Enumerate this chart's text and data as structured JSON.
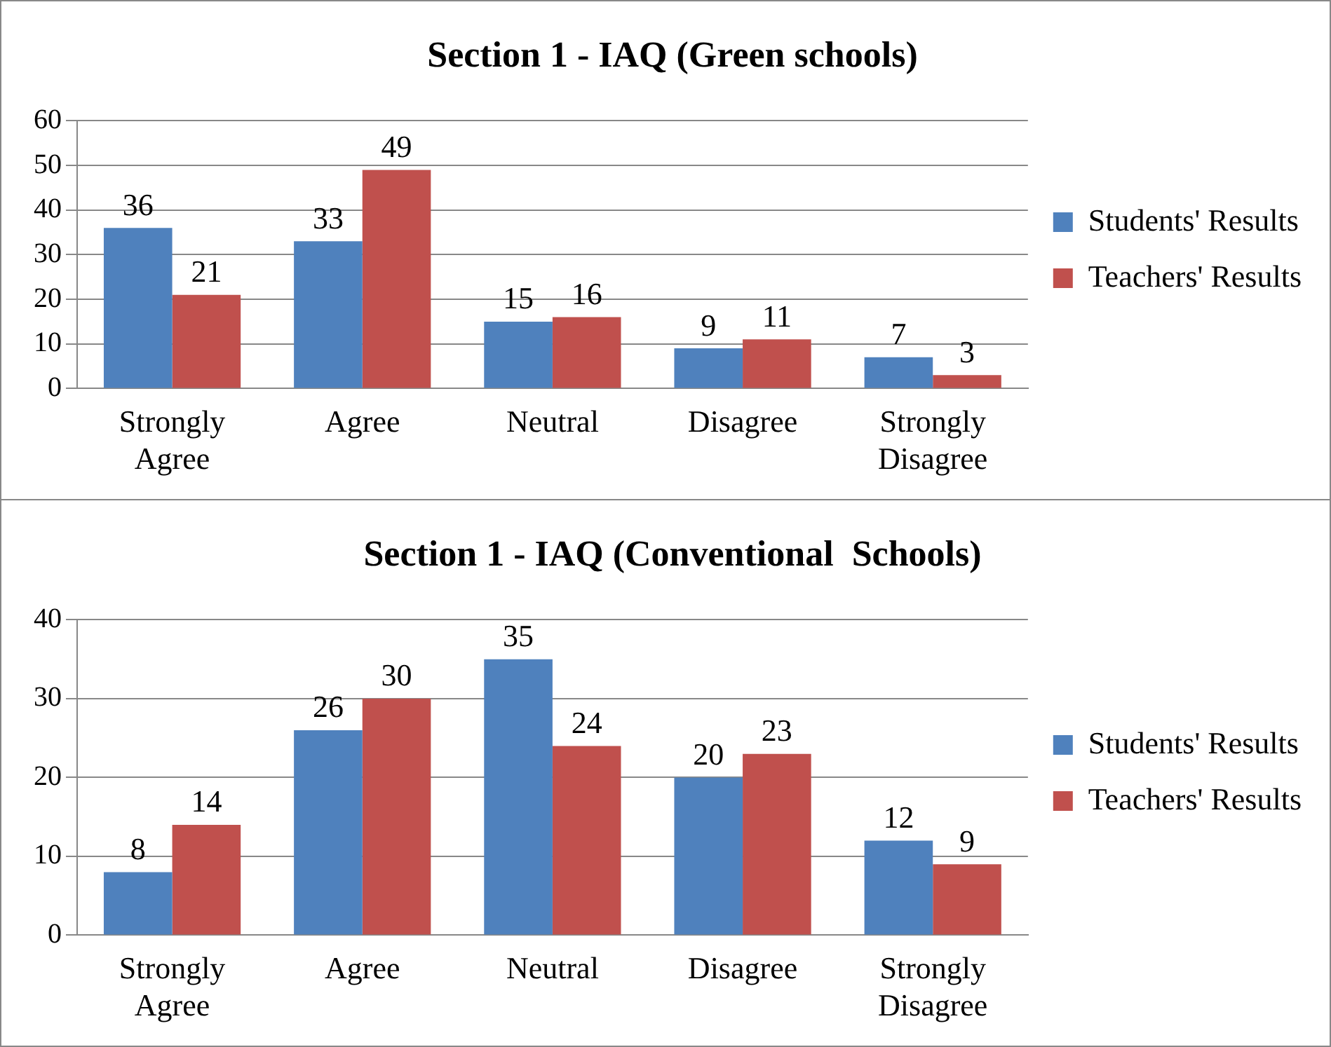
{
  "chart_data": [
    {
      "type": "bar",
      "title": "Section 1 - IAQ (Green schools)",
      "categories": [
        "Strongly Agree",
        "Agree",
        "Neutral",
        "Disagree",
        "Strongly Disagree"
      ],
      "series": [
        {
          "name": "Students' Results",
          "color": "#4f81bd",
          "values": [
            36,
            33,
            15,
            9,
            7
          ]
        },
        {
          "name": "Teachers' Results",
          "color": "#c0504d",
          "values": [
            21,
            49,
            16,
            11,
            3
          ]
        }
      ],
      "ylim": [
        0,
        60
      ],
      "yticks": [
        0,
        10,
        20,
        30,
        40,
        50,
        60
      ],
      "grid": "y",
      "legend": "right",
      "data_labels": true
    },
    {
      "type": "bar",
      "title": "Section 1 - IAQ (Conventional  Schools)",
      "categories": [
        "Strongly Agree",
        "Agree",
        "Neutral",
        "Disagree",
        "Strongly Disagree"
      ],
      "series": [
        {
          "name": "Students' Results",
          "color": "#4f81bd",
          "values": [
            8,
            26,
            35,
            20,
            12
          ]
        },
        {
          "name": "Teachers' Results",
          "color": "#c0504d",
          "values": [
            14,
            30,
            24,
            23,
            9
          ]
        }
      ],
      "ylim": [
        0,
        40
      ],
      "yticks": [
        0,
        10,
        20,
        30,
        40
      ],
      "grid": "y",
      "legend": "right",
      "data_labels": true
    }
  ]
}
